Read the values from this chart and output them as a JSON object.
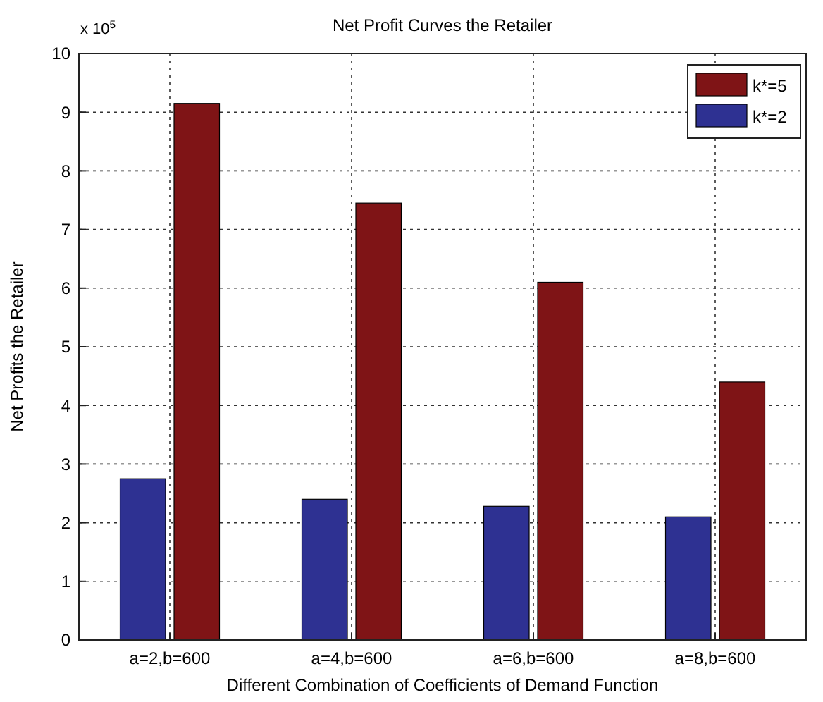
{
  "chart_data": {
    "type": "bar",
    "title": "Net Profit Curves the Retailer",
    "xlabel": "Different Combination of Coefficients of Demand Function",
    "ylabel": "Net Profits the Retailer",
    "annotations": [
      "x 10$^{5}$"
    ],
    "categories": [
      "a=2,b=600",
      "a=4,b=600",
      "a=6,b=600",
      "a=8,b=600"
    ],
    "series": [
      {
        "name": "k*=2",
        "color": "#2e3192",
        "values": [
          2.75,
          2.4,
          2.28,
          2.1
        ]
      },
      {
        "name": "k*=5",
        "color": "#7f1416",
        "values": [
          9.15,
          7.45,
          6.1,
          4.4
        ]
      }
    ],
    "ylim": [
      0,
      10
    ],
    "yticks": [
      0,
      1,
      2,
      3,
      4,
      5,
      6,
      7,
      8,
      9,
      10
    ],
    "grid": true,
    "legend": "top right"
  }
}
